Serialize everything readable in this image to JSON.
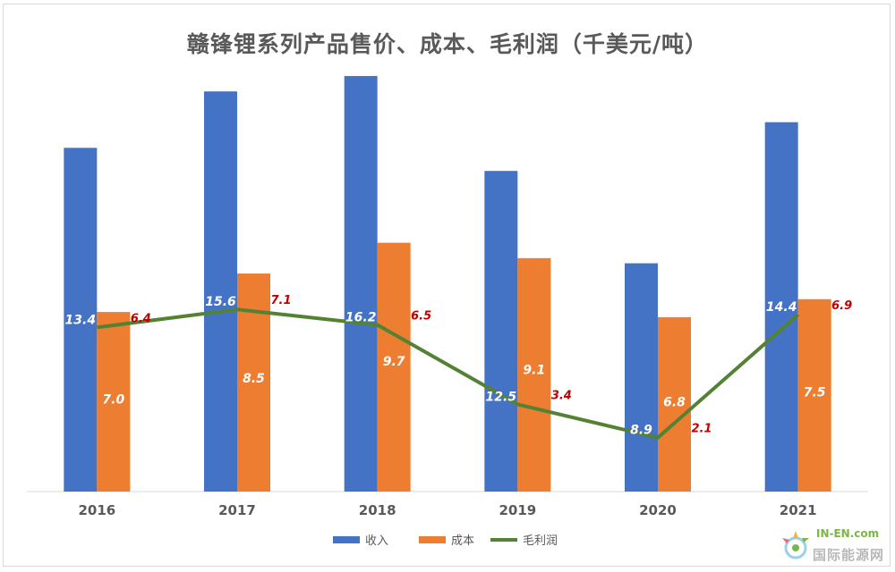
{
  "chart_data": {
    "type": "bar",
    "title": "赣锋锂系列产品售价、成本、毛利润（千美元/吨）",
    "categories": [
      "2016",
      "2017",
      "2018",
      "2019",
      "2020",
      "2021"
    ],
    "series": [
      {
        "name": "收入",
        "type": "bar",
        "color": "#4472c4",
        "values": [
          13.4,
          15.6,
          16.2,
          12.5,
          8.9,
          14.4
        ]
      },
      {
        "name": "成本",
        "type": "bar",
        "color": "#ed7d31",
        "values": [
          7.0,
          8.5,
          9.7,
          9.1,
          6.8,
          7.5
        ]
      },
      {
        "name": "毛利润",
        "type": "line",
        "color": "#548235",
        "values": [
          6.4,
          7.1,
          6.5,
          3.4,
          2.1,
          6.9
        ]
      }
    ],
    "label_colors": {
      "收入": "#ffffff",
      "成本": "#ffffff",
      "毛利润": "#c00000"
    },
    "legend_position": "bottom",
    "grid": false
  },
  "watermark": {
    "en": "IN-EN.com",
    "cn": "国际能源网"
  }
}
